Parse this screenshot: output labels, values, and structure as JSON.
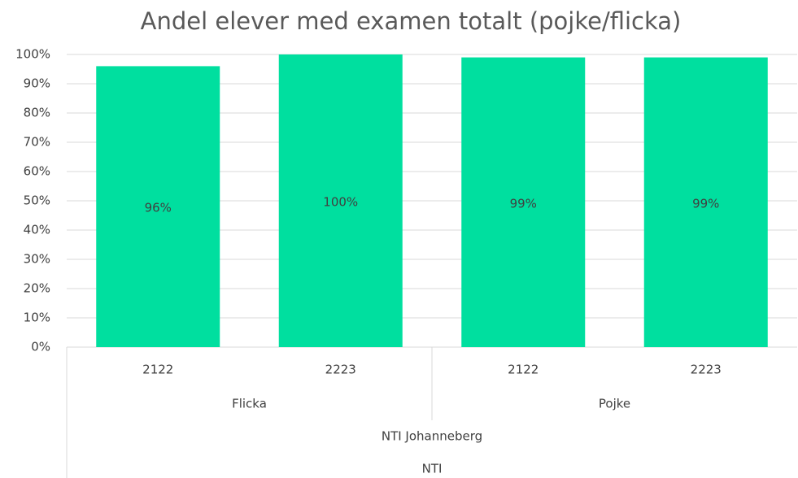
{
  "chart_data": {
    "type": "bar",
    "title": "Andel elever med examen totalt (pojke/flicka)",
    "categories": [
      "2122",
      "2223",
      "2122",
      "2223"
    ],
    "category_groups": [
      [
        "Flicka",
        "Pojke"
      ],
      [
        "NTI Johanneberg"
      ],
      [
        "NTI"
      ]
    ],
    "values": [
      96,
      100,
      99,
      99
    ],
    "value_labels": [
      "96%",
      "100%",
      "99%",
      "99%"
    ],
    "color": "#00df9f",
    "ylim": [
      0,
      100
    ],
    "yticks": [
      {
        "value": 0,
        "label": "0%"
      },
      {
        "value": 10,
        "label": "10%"
      },
      {
        "value": 20,
        "label": "20%"
      },
      {
        "value": 30,
        "label": "30%"
      },
      {
        "value": 40,
        "label": "40%"
      },
      {
        "value": 50,
        "label": "50%"
      },
      {
        "value": 60,
        "label": "60%"
      },
      {
        "value": 70,
        "label": "70%"
      },
      {
        "value": 80,
        "label": "80%"
      },
      {
        "value": 90,
        "label": "90%"
      },
      {
        "value": 100,
        "label": "100%"
      }
    ],
    "grid": true
  }
}
